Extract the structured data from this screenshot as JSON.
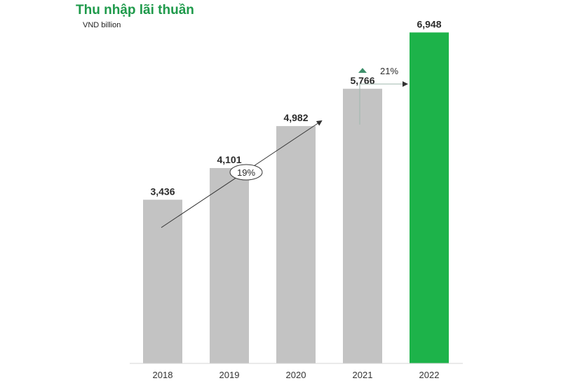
{
  "chart_data": {
    "type": "bar",
    "title": "Thu nhập lãi thuần",
    "unit": "VND billion",
    "categories": [
      "2018",
      "2019",
      "2020",
      "2021",
      "2022"
    ],
    "values": [
      3436,
      4101,
      4982,
      5766,
      6948
    ],
    "value_labels": [
      "3,436",
      "4,101",
      "4,982",
      "5,766",
      "6,948"
    ],
    "ylim": [
      0,
      7600
    ],
    "grid": false,
    "colors": {
      "default_bar": "#c3c3c3",
      "highlight_bar": "#1db34a",
      "title": "#1f9a4b",
      "annotation_arrow": "#333333",
      "growth_marker": "#3d8f6a"
    },
    "highlight_index": 4,
    "annotations": {
      "cagr_label": "19%",
      "yoy_label": "21%"
    }
  }
}
